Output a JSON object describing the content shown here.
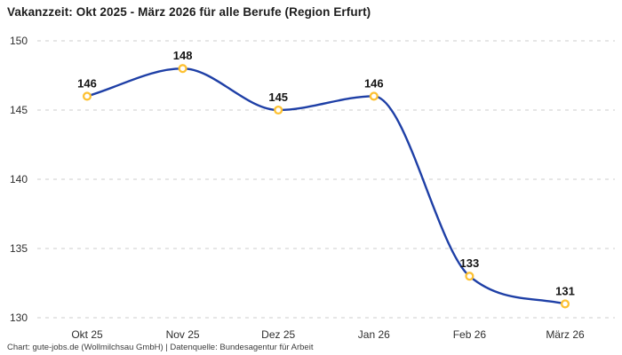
{
  "title": "Vakanzzeit: Okt 2025 - März 2026 für alle Berufe (Region Erfurt)",
  "footer": "Chart: gute-jobs.de (Wollmilchsau GmbH) | Datenquelle: Bundesagentur für Arbeit",
  "chart_data": {
    "type": "line",
    "title": "Vakanzzeit: Okt 2025 - März 2026 für alle Berufe (Region Erfurt)",
    "categories": [
      "Okt 25",
      "Nov 25",
      "Dez 25",
      "Jan 26",
      "Feb 26",
      "März 26"
    ],
    "values": [
      146,
      148,
      145,
      146,
      133,
      131
    ],
    "data_labels": [
      "146",
      "148",
      "145",
      "146",
      "133",
      "131"
    ],
    "yticks": [
      150,
      145,
      140,
      135,
      130
    ],
    "ylim": [
      130,
      150
    ],
    "xlabel": "",
    "ylabel": "",
    "grid": "horizontal-dashed",
    "legend": "none",
    "line_style": "smooth",
    "marker_style": "open-circle",
    "colors": {
      "line": "#1e3fa6",
      "marker_stroke": "#fdc132",
      "marker_fill": "#ffffff",
      "grid": "#cccccc",
      "tick_label": "#2e2e2e",
      "value_label": "#131313",
      "title": "#1d1d1d",
      "footer": "#3c3c3c",
      "background": "#ffffff"
    }
  }
}
